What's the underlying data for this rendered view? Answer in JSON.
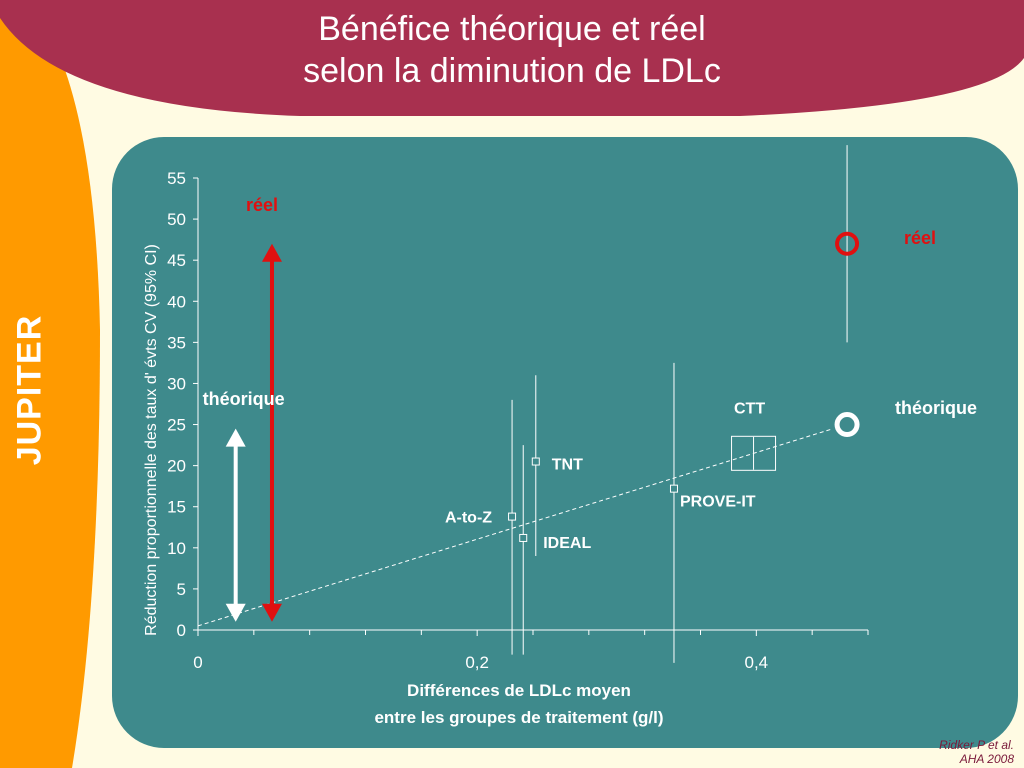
{
  "title": {
    "line1": "Bénéfice théorique et réel",
    "line2": "selon la diminution de LDLc"
  },
  "side_label": "JUPITER",
  "credit": {
    "line1": "Ridker  P  et al.",
    "line2": "AHA 2008"
  },
  "colors": {
    "background": "#fffbe3",
    "banner": "#a8304f",
    "side_band": "#ff9a00",
    "panel": "#3e8a8c",
    "arrow_real": "#e01010",
    "arrow_theoretical": "#ffffff",
    "jupiter_marker": "#e01010",
    "label_real": "#e01010"
  },
  "chart_data": {
    "type": "scatter",
    "title": "",
    "xlabel": "Différences de LDLc moyen entre les groupes de traitement (g/l)",
    "xlabel_lines": [
      "Différences de LDLc moyen",
      "entre les groupes de traitement (g/l)"
    ],
    "ylabel": "Réduction proportionnelle  des taux d' évts CV  (95% CI)",
    "xlim": [
      0,
      0.48
    ],
    "ylim": [
      0,
      55
    ],
    "x_ticks": [
      0,
      0.2,
      0.4
    ],
    "x_tick_labels": [
      "0",
      "0,2",
      "0,4"
    ],
    "x_minor_ticks": [
      0.04,
      0.08,
      0.12,
      0.16,
      0.24,
      0.28,
      0.32,
      0.36,
      0.44,
      0.48
    ],
    "y_ticks": [
      0,
      5,
      10,
      15,
      20,
      25,
      30,
      35,
      40,
      45,
      50,
      55
    ],
    "grid": false,
    "trend_line": {
      "from": [
        0,
        0.5
      ],
      "to": [
        0.455,
        24.5
      ],
      "style": "dashed"
    },
    "trials": [
      {
        "name": "A-to-Z",
        "x": 0.225,
        "y": 13.8,
        "ci": [
          -3,
          28
        ]
      },
      {
        "name": "IDEAL",
        "x": 0.233,
        "y": 11.2,
        "ci": [
          -3,
          22.5
        ]
      },
      {
        "name": "TNT",
        "x": 0.242,
        "y": 20.5,
        "ci": [
          9,
          31
        ]
      },
      {
        "name": "PROVE-IT",
        "x": 0.341,
        "y": 17.2,
        "ci": [
          -4,
          32.5
        ]
      },
      {
        "name": "CTT",
        "x": 0.398,
        "y": 21.5,
        "ci": [
          19.5,
          23.5
        ]
      }
    ],
    "jupiter": {
      "real": {
        "label": "réel",
        "x": 0.465,
        "y": 47,
        "ci": [
          35,
          59
        ]
      },
      "theoretical": {
        "label": "théorique",
        "x": 0.465,
        "y": 25
      }
    },
    "arrows": {
      "real": {
        "label": "réel",
        "x": 0.053,
        "from": 1,
        "to": 47
      },
      "theoretical": {
        "label": "théorique",
        "x": 0.027,
        "from": 1,
        "to": 24.5
      }
    }
  }
}
